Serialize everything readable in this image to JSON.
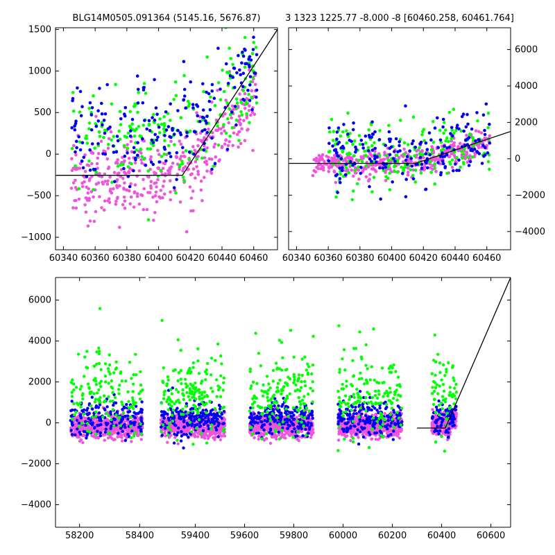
{
  "titles": {
    "left": "BLG14M0505.091364 (5145.16, 5676.87)",
    "right": "3 1323 1225.77 -8.000 -8 [60460.258, 60461.764]"
  },
  "colors": {
    "series_a": "#0000ee",
    "series_b": "#00ff00",
    "series_c": "#ee55dd",
    "model": "#000000"
  },
  "chart_data": [
    {
      "type": "scatter",
      "panel": "top-left",
      "title": "BLG14M0505.091364 (5145.16, 5676.87)",
      "xlim": [
        60335,
        60475
      ],
      "ylim": [
        -1150,
        1520
      ],
      "xticks": [
        60340,
        60360,
        60380,
        60400,
        60420,
        60440,
        60460
      ],
      "yticks": [
        -1000,
        -500,
        0,
        500,
        1000,
        1500
      ],
      "yaxis_side": "left",
      "grid": false,
      "series": [
        {
          "color": "#ee55dd",
          "x_range": [
            60345,
            60462
          ],
          "y_center": -250,
          "y_spread": 320,
          "trend": [
            [
              60345,
              -300
            ],
            [
              60415,
              -250
            ],
            [
              60462,
              700
            ]
          ],
          "n": 420
        },
        {
          "color": "#00ff00",
          "x_range": [
            60345,
            60462
          ],
          "y_center": 300,
          "y_spread": 450,
          "trend": [
            [
              60345,
              200
            ],
            [
              60415,
              250
            ],
            [
              60462,
              1000
            ]
          ],
          "n": 230
        },
        {
          "color": "#0000ee",
          "x_range": [
            60345,
            60462
          ],
          "y_center": 350,
          "y_spread": 420,
          "trend": [
            [
              60345,
              250
            ],
            [
              60415,
              300
            ],
            [
              60462,
              1100
            ]
          ],
          "n": 210
        }
      ],
      "model_line": {
        "x": [
          60335,
          60415,
          60475
        ],
        "y": [
          -255,
          -255,
          1500
        ]
      }
    },
    {
      "type": "scatter",
      "panel": "top-right",
      "title": "3 1323 1225.77 -8.000 -8 [60460.258, 60461.764]",
      "xlim": [
        60335,
        60475
      ],
      "ylim": [
        -5000,
        7200
      ],
      "xticks": [
        60340,
        60360,
        60380,
        60400,
        60420,
        60440,
        60460
      ],
      "yticks": [
        -4000,
        -2000,
        0,
        2000,
        4000,
        6000
      ],
      "yaxis_side": "right",
      "grid": false,
      "series": [
        {
          "color": "#ee55dd",
          "x_range": [
            60350,
            60462
          ],
          "y_center": -200,
          "y_spread": 500,
          "trend": [
            [
              60350,
              -300
            ],
            [
              60415,
              -250
            ],
            [
              60462,
              900
            ]
          ],
          "n": 420
        },
        {
          "color": "#00ff00",
          "x_range": [
            60360,
            60462
          ],
          "y_center": 300,
          "y_spread": 1500,
          "trend": [
            [
              60360,
              200
            ],
            [
              60415,
              250
            ],
            [
              60462,
              1200
            ]
          ],
          "n": 200
        },
        {
          "color": "#0000ee",
          "x_range": [
            60360,
            60462
          ],
          "y_center": 400,
          "y_spread": 1300,
          "trend": [
            [
              60360,
              300
            ],
            [
              60415,
              300
            ],
            [
              60462,
              1100
            ]
          ],
          "n": 200
        }
      ],
      "model_line": {
        "x": [
          60335,
          60415,
          60475
        ],
        "y": [
          -255,
          -255,
          1500
        ]
      }
    },
    {
      "type": "scatter",
      "panel": "bottom",
      "title": "",
      "xlim": [
        58120,
        60680
      ],
      "ylim": [
        -5100,
        7100
      ],
      "xticks": [
        58200,
        58400,
        59400,
        59600,
        59800,
        60000,
        60200,
        60400,
        60600
      ],
      "xtick_labels": [
        "58200",
        "58400",
        "59400",
        "59600",
        "59800",
        "60000",
        "60200",
        "60400",
        "60600"
      ],
      "axis_break": {
        "after": 58420,
        "resume": 59210
      },
      "yticks": [
        -4000,
        -2000,
        0,
        2000,
        4000,
        6000
      ],
      "yaxis_side": "left",
      "grid": false,
      "seasons": [
        [
          58170,
          58410
        ],
        [
          59260,
          59520
        ],
        [
          59620,
          59880
        ],
        [
          59980,
          60240
        ],
        [
          60360,
          60460
        ]
      ],
      "series": [
        {
          "color": "#ee55dd",
          "y_center": -150,
          "y_spread": 450,
          "n_per_season": 600
        },
        {
          "color": "#0000ee",
          "y_center": 200,
          "y_spread": 700,
          "n_per_season": 200
        },
        {
          "color": "#00ff00",
          "y_center": 900,
          "y_spread": 1500,
          "n_per_season": 160
        }
      ],
      "model_line": {
        "x": [
          60300,
          60415,
          60680
        ],
        "y": [
          -255,
          -255,
          7100
        ]
      }
    }
  ]
}
